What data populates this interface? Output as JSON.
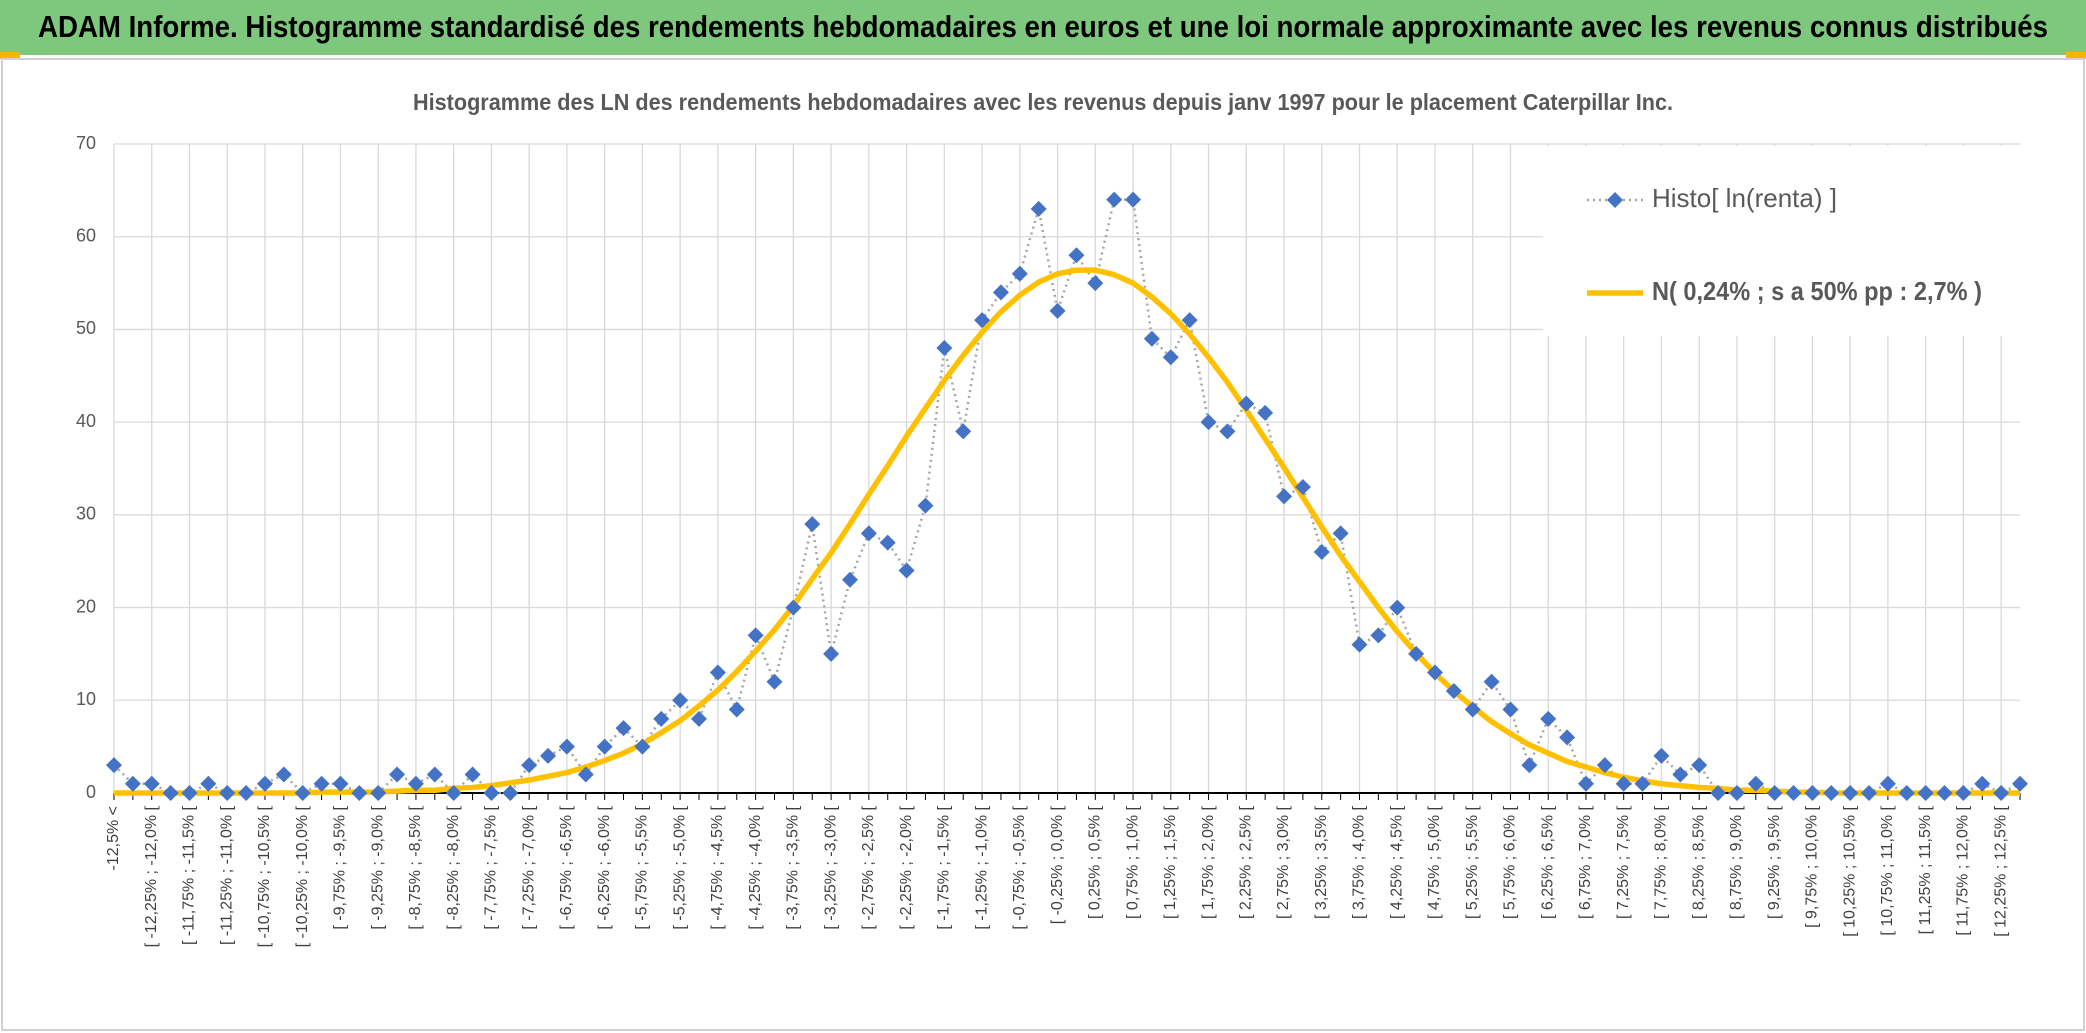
{
  "header": {
    "title": "ADAM Informe. Histogramme standardisé des rendements hebdomadaires en euros et une loi normale approximante avec les revenus connus distribués"
  },
  "chart_data": {
    "type": "line",
    "title": "Histogramme des LN des rendements hebdomadaires avec les revenus depuis janv 1997 pour le placement Caterpillar Inc.",
    "categories": [
      "-12,5% <",
      null,
      "[ -12,25% ; -12,0% [",
      null,
      "[ -11,75% ; -11,5% [",
      null,
      "[ -11,25% ; -11,0% [",
      null,
      "[ -10,75% ; -10,5% [",
      null,
      "[ -10,25% ; -10,0% [",
      null,
      "[ -9,75% ; -9,5% [",
      null,
      "[ -9,25% ; -9,0% [",
      null,
      "[ -8,75% ; -8,5% [",
      null,
      "[ -8,25% ; -8,0% [",
      null,
      "[ -7,75% ; -7,5% [",
      null,
      "[ -7,25% ; -7,0% [",
      null,
      "[ -6,75% ; -6,5% [",
      null,
      "[ -6,25% ; -6,0% [",
      null,
      "[ -5,75% ; -5,5% [",
      null,
      "[ -5,25% ; -5,0% [",
      null,
      "[ -4,75% ; -4,5% [",
      null,
      "[ -4,25% ; -4,0% [",
      null,
      "[ -3,75% ; -3,5% [",
      null,
      "[ -3,25% ; -3,0% [",
      null,
      "[ -2,75% ; -2,5% [",
      null,
      "[ -2,25% ; -2,0% [",
      null,
      "[ -1,75% ; -1,5% [",
      null,
      "[ -1,25% ; -1,0% [",
      null,
      "[ -0,75% ; -0,5% [",
      null,
      "[ -0,25% ; 0,0% [",
      null,
      "[ 0,25% ; 0,5% [",
      null,
      "[ 0,75% ; 1,0% [",
      null,
      "[ 1,25% ; 1,5% [",
      null,
      "[ 1,75% ; 2,0% [",
      null,
      "[ 2,25% ; 2,5% [",
      null,
      "[ 2,75% ; 3,0% [",
      null,
      "[ 3,25% ; 3,5% [",
      null,
      "[ 3,75% ; 4,0% [",
      null,
      "[ 4,25% ; 4,5% [",
      null,
      "[ 4,75% ; 5,0% [",
      null,
      "[ 5,25% ; 5,5% [",
      null,
      "[ 5,75% ; 6,0% [",
      null,
      "[ 6,25% ; 6,5% [",
      null,
      "[ 6,75% ; 7,0% [",
      null,
      "[ 7,25% ; 7,5% [",
      null,
      "[ 7,75% ; 8,0% [",
      null,
      "[ 8,25% ; 8,5% [",
      null,
      "[ 8,75% ; 9,0% [",
      null,
      "[ 9,25% ; 9,5% [",
      null,
      "[ 9,75% ; 10,0% [",
      null,
      "[ 10,25% ; 10,5% [",
      null,
      "[ 10,75% ; 11,0% [",
      null,
      "[ 11,25% ; 11,5% [",
      null,
      "[ 11,75% ; 12,0% [",
      null,
      "[ 12,25% ; 12,5% [",
      null
    ],
    "series": [
      {
        "name": "Histo[ ln(renta) ]",
        "color": "#4472c4",
        "line_color": "#a5a5a5",
        "values": [
          3,
          1,
          1,
          0,
          0,
          1,
          0,
          0,
          1,
          2,
          0,
          1,
          1,
          0,
          0,
          2,
          1,
          2,
          0,
          2,
          0,
          0,
          3,
          4,
          5,
          2,
          5,
          7,
          5,
          8,
          10,
          8,
          13,
          9,
          17,
          12,
          20,
          29,
          15,
          23,
          28,
          27,
          24,
          31,
          48,
          39,
          51,
          54,
          56,
          63,
          52,
          58,
          55,
          64,
          64,
          49,
          47,
          51,
          40,
          39,
          42,
          41,
          32,
          33,
          26,
          28,
          16,
          17,
          20,
          15,
          13,
          11,
          9,
          12,
          9,
          3,
          8,
          6,
          1,
          3,
          1,
          1,
          4,
          2,
          3,
          0,
          0,
          1,
          0,
          0,
          0,
          0,
          0,
          0,
          1,
          0,
          0,
          0,
          0,
          1,
          0,
          1
        ]
      },
      {
        "name": "N( 0,24% ; s a 50% pp : 2,7% )",
        "color": "#ffc000",
        "values": [
          0,
          0,
          0,
          0,
          0,
          0,
          0,
          0,
          0,
          0,
          0,
          0.1,
          0.1,
          0.1,
          0.1,
          0.2,
          0.3,
          0.3,
          0.5,
          0.6,
          0.8,
          1.1,
          1.4,
          1.8,
          2.2,
          2.8,
          3.5,
          4.3,
          5.3,
          6.5,
          7.8,
          9.4,
          11.1,
          13.1,
          15.3,
          17.6,
          20.2,
          23.1,
          25.9,
          29.0,
          32.2,
          35.3,
          38.5,
          41.5,
          44.5,
          47.2,
          49.7,
          51.9,
          53.7,
          55.1,
          56.0,
          56.4,
          56.4,
          55.9,
          55.0,
          53.5,
          51.7,
          49.5,
          47.0,
          44.3,
          41.3,
          38.2,
          35.1,
          31.9,
          28.7,
          25.6,
          22.8,
          20.0,
          17.4,
          15.1,
          12.9,
          11.0,
          9.3,
          7.7,
          6.4,
          5.2,
          4.3,
          3.4,
          2.8,
          2.2,
          1.7,
          1.3,
          1.0,
          0.8,
          0.6,
          0.5,
          0.3,
          0.3,
          0.2,
          0.1,
          0.1,
          0,
          0,
          0,
          0,
          0,
          0,
          0,
          0,
          0,
          0,
          0
        ]
      }
    ],
    "ylim": [
      0,
      70
    ],
    "yticks": [
      0,
      10,
      20,
      30,
      40,
      50,
      60,
      70
    ],
    "grid": true,
    "legend": "upper right"
  }
}
